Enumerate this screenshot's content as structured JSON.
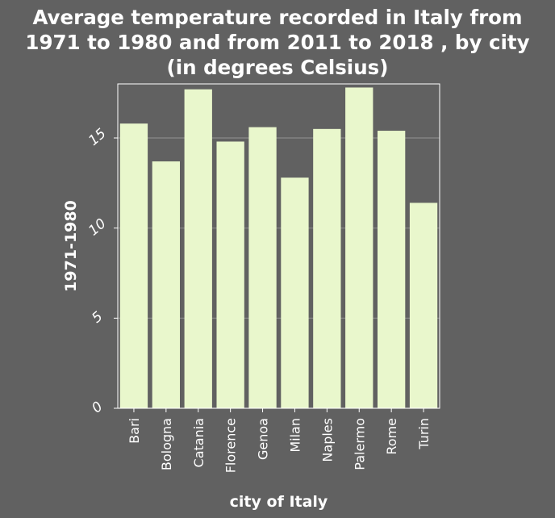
{
  "chart_data": {
    "type": "bar",
    "title_lines": [
      "Average temperature recorded in Italy from",
      "1971 to 1980 and from 2011 to 2018 , by city",
      "(in degrees Celsius)"
    ],
    "xlabel": "city of Italy",
    "ylabel": "1971-1980",
    "categories": [
      "Bari",
      "Bologna",
      "Catania",
      "Florence",
      "Genoa",
      "Milan",
      "Naples",
      "Palermo",
      "Rome",
      "Turin"
    ],
    "series": [
      {
        "values": [
          15.8,
          13.7,
          17.7,
          14.8,
          15.6,
          12.8,
          15.5,
          17.8,
          15.4,
          11.4
        ]
      }
    ],
    "ylim": [
      0,
      18
    ],
    "yticks": [
      0,
      5,
      10,
      15
    ],
    "grid": true,
    "colors": {
      "background": "#616161",
      "bar": "#e9f7cc",
      "grid": "#8a8a8a",
      "text": "#ffffff",
      "frame": "#ffffff"
    }
  }
}
